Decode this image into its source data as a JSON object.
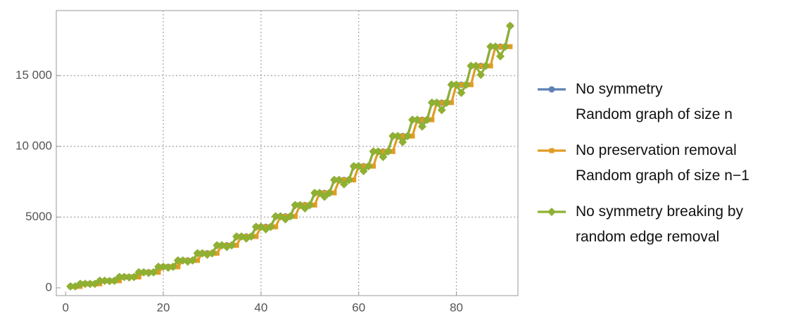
{
  "chart_data": {
    "type": "line",
    "x": [
      1,
      2,
      3,
      4,
      5,
      6,
      7,
      8,
      9,
      10,
      11,
      12,
      13,
      14,
      15,
      16,
      17,
      18,
      19,
      20,
      21,
      22,
      23,
      24,
      25,
      26,
      27,
      28,
      29,
      30,
      31,
      32,
      33,
      34,
      35,
      36,
      37,
      38,
      39,
      40,
      41,
      42,
      43,
      44,
      45,
      46,
      47,
      48,
      49,
      50,
      51,
      52,
      53,
      54,
      55,
      56,
      57,
      58,
      59,
      60,
      61,
      62,
      63,
      64,
      65,
      66,
      67,
      68,
      69,
      70,
      71,
      72,
      73,
      74,
      75,
      76,
      77,
      78,
      79,
      80,
      81,
      82,
      83,
      84,
      85,
      86,
      87,
      88,
      89,
      90,
      91
    ],
    "series": [
      {
        "name": "No symmetry\nRandom graph of size n",
        "color": "#5e81b5",
        "marker": "circle",
        "values": [
          100,
          100,
          286,
          286,
          286,
          286,
          499,
          499,
          499,
          499,
          770,
          770,
          770,
          770,
          1100,
          1100,
          1100,
          1100,
          1489,
          1489,
          1489,
          1489,
          1936,
          1936,
          1936,
          1936,
          2442,
          2442,
          2442,
          2442,
          3007,
          3007,
          3007,
          3007,
          3630,
          3630,
          3630,
          3630,
          4313,
          4313,
          4313,
          4313,
          5053,
          5053,
          5053,
          5053,
          5852,
          5852,
          5852,
          5852,
          6710,
          6710,
          6710,
          6710,
          7627,
          7627,
          7627,
          7627,
          8600,
          8600,
          8600,
          8600,
          9637,
          9637,
          9637,
          9637,
          10729,
          10729,
          10729,
          10729,
          11881,
          11881,
          11881,
          11881,
          13090,
          13090,
          13090,
          13090,
          14359,
          14359,
          14359,
          14359,
          15687,
          15687,
          15687,
          15687,
          17050,
          17050,
          17050,
          17050,
          18520
        ]
      },
      {
        "name": "No preservation removal\nRandom graph of size n−1",
        "color": "#e19c24",
        "marker": "square",
        "values": [
          100,
          100,
          100,
          286,
          286,
          286,
          286,
          499,
          499,
          499,
          499,
          770,
          770,
          770,
          770,
          1100,
          1100,
          1100,
          1100,
          1489,
          1489,
          1489,
          1489,
          1936,
          1936,
          1936,
          1936,
          2442,
          2442,
          2442,
          2442,
          3007,
          3007,
          3007,
          3007,
          3630,
          3630,
          3630,
          3630,
          4313,
          4313,
          4313,
          4313,
          5053,
          5053,
          5053,
          5053,
          5852,
          5852,
          5852,
          5852,
          6710,
          6710,
          6710,
          6710,
          7627,
          7627,
          7627,
          7627,
          8600,
          8600,
          8600,
          8600,
          9637,
          9637,
          9637,
          9637,
          10729,
          10729,
          10729,
          10729,
          11881,
          11881,
          11881,
          11881,
          13090,
          13090,
          13090,
          13090,
          14359,
          14359,
          14359,
          14359,
          15687,
          15687,
          15687,
          15687,
          17050,
          17050,
          17050,
          17050
        ]
      },
      {
        "name": "No symmetry breaking by\nrandom edge removal",
        "color": "#8fb032",
        "marker": "diamond",
        "values": [
          100,
          100,
          286,
          286,
          275,
          286,
          499,
          499,
          479,
          499,
          770,
          770,
          739,
          770,
          1100,
          1100,
          1056,
          1100,
          1489,
          1489,
          1429,
          1489,
          1936,
          1936,
          1859,
          1936,
          2442,
          2442,
          2344,
          2442,
          3007,
          3007,
          2887,
          3007,
          3630,
          3630,
          3485,
          3630,
          4313,
          4313,
          4140,
          4313,
          5053,
          5053,
          4851,
          5053,
          5852,
          5852,
          5618,
          5852,
          6710,
          6710,
          6442,
          6710,
          7627,
          7627,
          7322,
          7627,
          8600,
          8600,
          8256,
          8600,
          9637,
          9637,
          9252,
          9637,
          10729,
          10729,
          10300,
          10729,
          11881,
          11881,
          11406,
          11881,
          13090,
          13090,
          12566,
          13090,
          14359,
          14359,
          13785,
          14359,
          15687,
          15687,
          15060,
          15687,
          17050,
          17050,
          16368,
          17050,
          18520
        ]
      }
    ],
    "xlim": [
      -1.9,
      92.6
    ],
    "ylim": [
      -550,
      19600
    ],
    "xticks": [
      0,
      20,
      40,
      60,
      80
    ],
    "yticks": [
      0,
      5000,
      {
        "value": 10000,
        "label": "10 000"
      },
      {
        "value": 15000,
        "label": "15 000"
      }
    ],
    "grid": true,
    "legend": "right"
  }
}
